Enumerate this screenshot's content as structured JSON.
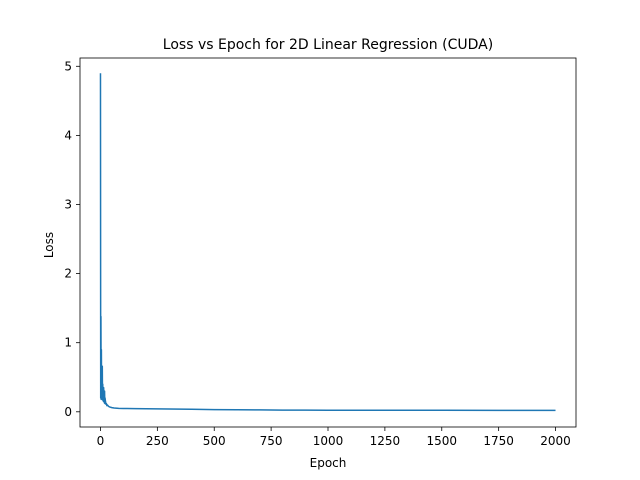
{
  "chart_data": {
    "type": "line",
    "title": "Loss vs Epoch for 2D Linear Regression (CUDA)",
    "xlabel": "Epoch",
    "ylabel": "Loss",
    "xlim": [
      -90,
      2090
    ],
    "ylim": [
      -0.22,
      5.12
    ],
    "xticks": [
      0,
      250,
      500,
      750,
      1000,
      1250,
      1500,
      1750,
      2000
    ],
    "yticks": [
      0,
      1,
      2,
      3,
      4,
      5
    ],
    "grid": false,
    "legend": "none",
    "color": "#1f77b4",
    "series": [
      {
        "x": [
          0,
          1,
          2,
          3,
          4,
          5,
          6,
          7,
          8,
          9,
          10,
          11,
          12,
          13,
          14,
          15,
          16,
          17,
          18,
          19,
          20,
          22,
          24,
          26,
          28,
          30,
          35,
          40,
          50,
          60,
          80,
          100,
          150,
          200,
          300,
          400,
          500,
          600,
          700,
          800,
          900,
          1000,
          1250,
          1500,
          1750,
          2000
        ],
        "y": [
          4.9,
          0.2,
          1.38,
          0.18,
          0.9,
          0.2,
          0.6,
          0.2,
          0.66,
          0.17,
          0.4,
          0.2,
          0.3,
          0.15,
          0.35,
          0.17,
          0.25,
          0.13,
          0.3,
          0.12,
          0.2,
          0.15,
          0.11,
          0.12,
          0.09,
          0.1,
          0.08,
          0.07,
          0.06,
          0.055,
          0.05,
          0.048,
          0.046,
          0.044,
          0.04,
          0.036,
          0.032,
          0.029,
          0.027,
          0.025,
          0.024,
          0.023,
          0.022,
          0.022,
          0.021,
          0.021
        ]
      }
    ]
  }
}
